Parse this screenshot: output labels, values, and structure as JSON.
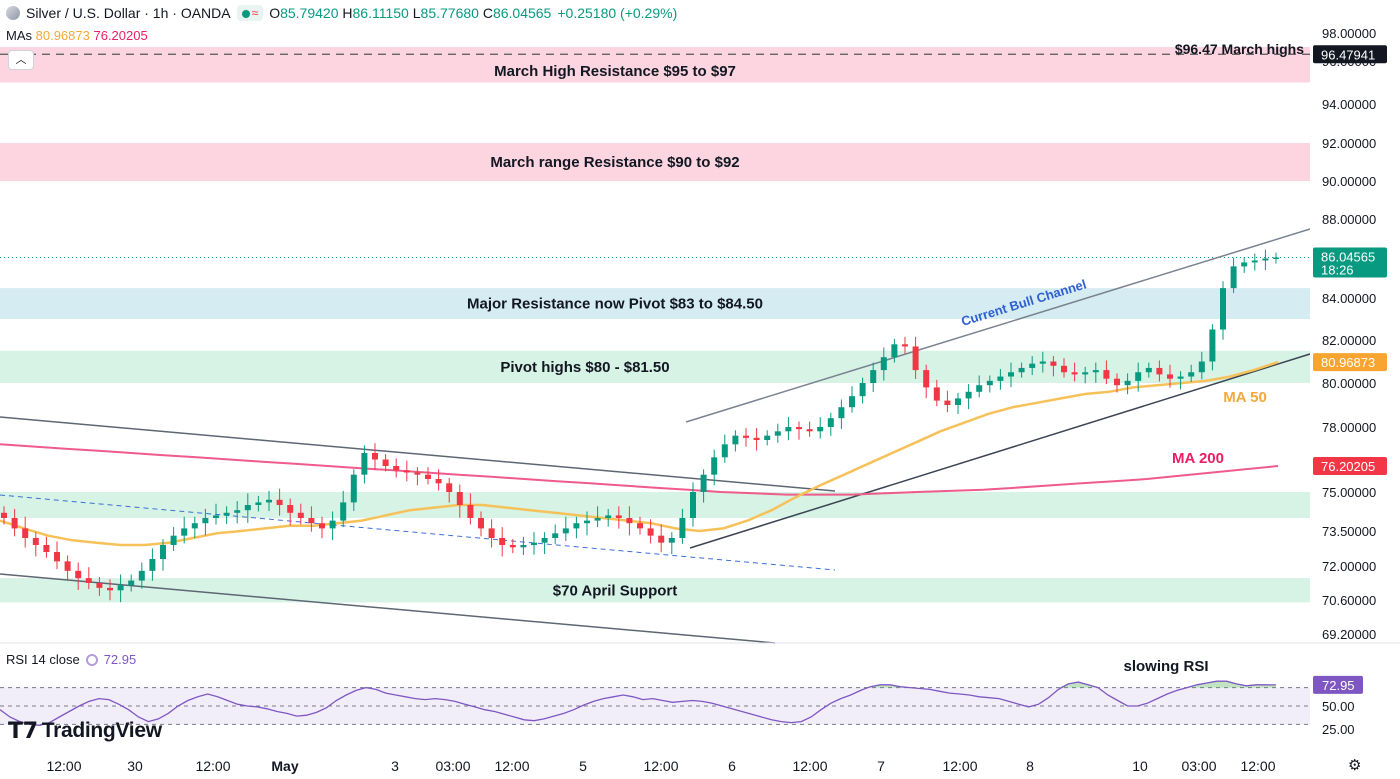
{
  "header": {
    "symbol": "Silver / U.S. Dollar · 1h · OANDA",
    "open_label": "O",
    "open": "85.79420",
    "high_label": "H",
    "high": "86.11150",
    "low_label": "L",
    "low": "85.77680",
    "close_label": "C",
    "close": "86.04565",
    "change": "+0.25180 (+0.29%)"
  },
  "mas": {
    "label": "MAs",
    "ma50": "80.96873",
    "ma200": "76.20205"
  },
  "rsi": {
    "label": "RSI 14 close",
    "value": "72.95"
  },
  "logo": "TradingView",
  "colors": {
    "up": "#089981",
    "down": "#f23645",
    "ma50": "#f7c15a",
    "ma200": "#ef5b8a",
    "rsi": "#7e57c2"
  },
  "chart_data": {
    "type": "candlestick",
    "y_axis": {
      "ticks": [
        "98.00000",
        "96.00000",
        "94.00000",
        "92.00000",
        "90.00000",
        "88.00000",
        "84.00000",
        "82.00000",
        "80.00000",
        "78.00000",
        "75.00000",
        "73.50000",
        "72.00000",
        "70.60000",
        "69.20000"
      ],
      "tick_values": [
        98,
        96,
        94,
        92,
        90,
        88,
        84,
        82,
        80,
        78,
        75,
        73.5,
        72,
        70.6,
        69.2
      ],
      "price_labels": [
        {
          "text": "96.47941",
          "value": 96.48,
          "kind": "line"
        },
        {
          "text": "86.04565",
          "subtext": "18:26",
          "value": 86.05,
          "kind": "last"
        },
        {
          "text": "80.96873",
          "value": 80.97,
          "kind": "ma50"
        },
        {
          "text": "76.20205",
          "value": 76.2,
          "kind": "ma200"
        }
      ]
    },
    "x_axis": {
      "ticks": [
        "12:00",
        "30",
        "12:00",
        "May",
        "3",
        "03:00",
        "12:00",
        "5",
        "12:00",
        "6",
        "12:00",
        "7",
        "12:00",
        "8",
        "10",
        "03:00",
        "12:00"
      ]
    },
    "zones": [
      {
        "label": "March High Resistance $95 to $97",
        "from": 95,
        "to": 97,
        "color": "#fcd5e0"
      },
      {
        "label": "March range Resistance $90 to $92",
        "from": 90,
        "to": 92,
        "color": "#fcd5e0"
      },
      {
        "label": "Major Resistance now Pivot $83 to $84.50",
        "from": 83,
        "to": 84.5,
        "color": "#d5ecf3"
      },
      {
        "label": "Pivot highs $80 - $81.50",
        "from": 80,
        "to": 81.5,
        "color": "#d6f3e5"
      },
      {
        "label": "",
        "from": 74,
        "to": 75,
        "color": "#d6f3e5"
      },
      {
        "label": "$70 April Support",
        "from": 70.5,
        "to": 71.5,
        "color": "#d6f3e5"
      }
    ],
    "annotations": {
      "march_highs": "$96.47 March highs",
      "channel": "Current Bull Channel",
      "ma50": "MA 50",
      "ma200": "MA 200",
      "rsi_note": "slowing RSI"
    },
    "close_series": [
      74.0,
      73.6,
      73.2,
      72.9,
      72.6,
      72.2,
      71.8,
      71.5,
      71.3,
      71.1,
      71.0,
      71.2,
      71.4,
      71.8,
      72.3,
      72.9,
      73.3,
      73.6,
      73.8,
      74.0,
      74.1,
      74.2,
      74.3,
      74.5,
      74.6,
      74.7,
      74.5,
      74.2,
      74.0,
      73.8,
      73.6,
      73.9,
      74.6,
      75.8,
      76.8,
      76.5,
      76.2,
      76.0,
      75.9,
      75.8,
      75.6,
      75.4,
      75.0,
      74.5,
      74.0,
      73.6,
      73.2,
      72.9,
      72.8,
      72.9,
      73.0,
      73.2,
      73.4,
      73.6,
      73.8,
      73.9,
      74.0,
      74.1,
      74.0,
      73.8,
      73.6,
      73.3,
      73.0,
      73.2,
      74.0,
      75.0,
      75.8,
      76.6,
      77.2,
      77.6,
      77.5,
      77.4,
      77.6,
      77.8,
      78.0,
      77.9,
      77.8,
      78.0,
      78.4,
      78.9,
      79.4,
      80.0,
      80.6,
      81.2,
      81.8,
      81.7,
      80.6,
      79.8,
      79.2,
      79.0,
      79.3,
      79.6,
      79.9,
      80.1,
      80.3,
      80.5,
      80.7,
      80.9,
      81.0,
      80.8,
      80.5,
      80.4,
      80.5,
      80.6,
      80.2,
      79.9,
      80.1,
      80.5,
      80.7,
      80.4,
      80.2,
      80.3,
      80.5,
      81.0,
      82.5,
      84.5,
      85.6,
      85.8,
      85.9,
      86.0,
      86.05
    ],
    "ma50_series": [
      73.9,
      73.6,
      73.3,
      73.1,
      73.0,
      72.9,
      72.9,
      73.0,
      73.2,
      73.4,
      73.5,
      73.6,
      73.7,
      73.7,
      73.8,
      73.9,
      74.1,
      74.3,
      74.4,
      74.5,
      74.5,
      74.4,
      74.3,
      74.2,
      74.1,
      74.0,
      73.9,
      73.8,
      73.6,
      73.5,
      73.6,
      73.9,
      74.3,
      74.8,
      75.3,
      75.8,
      76.3,
      76.8,
      77.3,
      77.8,
      78.2,
      78.6,
      78.9,
      79.1,
      79.3,
      79.5,
      79.6,
      79.8,
      79.9,
      80.0,
      80.1,
      80.3,
      80.6,
      80.97
    ],
    "ma200_series": [
      77.2,
      77.1,
      77.0,
      76.9,
      76.8,
      76.7,
      76.6,
      76.5,
      76.4,
      76.3,
      76.2,
      76.1,
      76.0,
      75.9,
      75.8,
      75.7,
      75.6,
      75.5,
      75.4,
      75.3,
      75.2,
      75.1,
      75.0,
      74.95,
      74.9,
      74.9,
      74.9,
      74.95,
      75.0,
      75.05,
      75.1,
      75.2,
      75.3,
      75.4,
      75.5,
      75.6,
      75.75,
      75.9,
      76.05,
      76.2
    ],
    "rsi_series": [
      46,
      38,
      33,
      30,
      29,
      32,
      38,
      44,
      50,
      55,
      58,
      57,
      52,
      46,
      38,
      33,
      36,
      42,
      50,
      56,
      60,
      63,
      60,
      56,
      52,
      50,
      49,
      47,
      44,
      42,
      39,
      40,
      43,
      48,
      56,
      62,
      67,
      70,
      68,
      64,
      62,
      60,
      58,
      57,
      58,
      57,
      55,
      52,
      49,
      46,
      44,
      41,
      38,
      35,
      34,
      36,
      39,
      42,
      46,
      51,
      55,
      58,
      60,
      62,
      60,
      57,
      58,
      56,
      54,
      55,
      56,
      55,
      53,
      50,
      47,
      44,
      41,
      38,
      35,
      33,
      32,
      33,
      38,
      46,
      53,
      58,
      62,
      67,
      71,
      73,
      73,
      71,
      70,
      69,
      68,
      66,
      64,
      63,
      62,
      60,
      59,
      58,
      55,
      52,
      49,
      52,
      59,
      68,
      74,
      76,
      73,
      70,
      62,
      56,
      50,
      50,
      53,
      58,
      63,
      67,
      70,
      73,
      75,
      77,
      77,
      74,
      72,
      73,
      73,
      72.95
    ],
    "rsi_axis": {
      "ticks": [
        "72.95",
        "50.00",
        "25.00"
      ],
      "levels": [
        70,
        50,
        30
      ]
    }
  }
}
